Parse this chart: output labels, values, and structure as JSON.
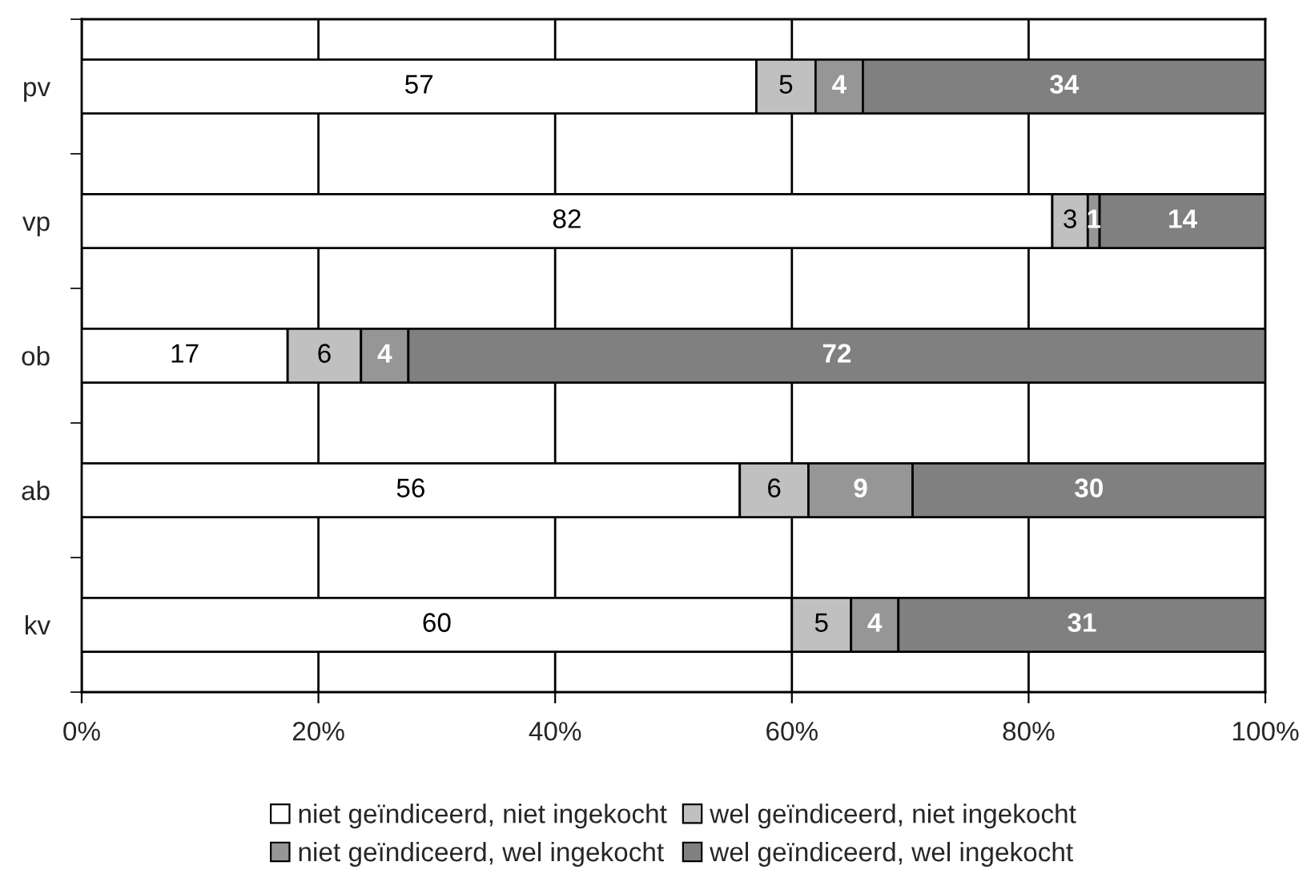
{
  "chart_data": {
    "type": "bar",
    "orientation": "horizontal",
    "stacked": true,
    "categories": [
      "pv",
      "vp",
      "ob",
      "ab",
      "kv"
    ],
    "series": [
      {
        "name": "niet geïndiceerd, niet ingekocht",
        "color": "#ffffff",
        "values": [
          57,
          82,
          17.4,
          55.6,
          60
        ],
        "value_labels": [
          "57",
          "82",
          "17",
          "56",
          "60"
        ]
      },
      {
        "name": "wel geïndiceerd, niet ingekocht",
        "color": "#c0c0c0",
        "values": [
          5,
          3,
          6.2,
          5.8,
          5
        ],
        "value_labels": [
          "5",
          "3",
          "6",
          "6",
          "5"
        ]
      },
      {
        "name": "niet geïndiceerd, wel ingekocht",
        "color": "#969696",
        "values": [
          4,
          1,
          4.0,
          8.8,
          4
        ],
        "value_labels": [
          "4",
          "1",
          "4",
          "9",
          "4"
        ]
      },
      {
        "name": "wel geïndiceerd, wel ingekocht",
        "color": "#808080",
        "values": [
          34,
          14,
          72.4,
          29.8,
          31
        ],
        "value_labels": [
          "34",
          "14",
          "72",
          "30",
          "31"
        ]
      }
    ],
    "xlim": [
      0,
      100
    ],
    "xticks": [
      {
        "value": 0,
        "label": "0%"
      },
      {
        "value": 20,
        "label": "20%"
      },
      {
        "value": 40,
        "label": "40%"
      },
      {
        "value": 60,
        "label": "60%"
      },
      {
        "value": 80,
        "label": "80%"
      },
      {
        "value": 100,
        "label": "100%"
      }
    ],
    "grid": "x",
    "legend": "bottom"
  }
}
